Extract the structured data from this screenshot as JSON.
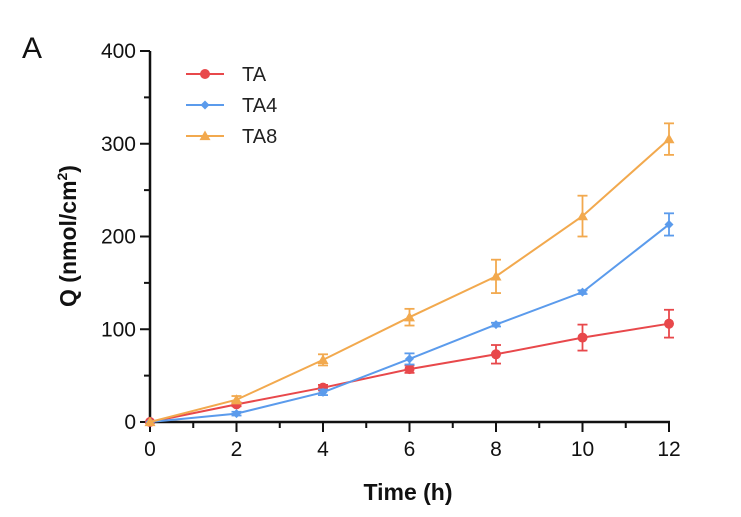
{
  "chart_data": {
    "type": "line",
    "panel_label": "A",
    "xlabel": "Time (h)",
    "ylabel": "Q (nmol/cm",
    "ylabel_sup": "2",
    "ylabel_close": ")",
    "xlim": [
      0,
      12
    ],
    "ylim": [
      0,
      400
    ],
    "x_ticks": [
      "0",
      "2",
      "4",
      "6",
      "8",
      "10",
      "12"
    ],
    "y_ticks": [
      "0",
      "100",
      "200",
      "300",
      "400"
    ],
    "x": [
      0,
      2,
      4,
      6,
      8,
      10,
      12
    ],
    "grid": false,
    "legend_position": "top-left",
    "series": [
      {
        "name": "TA",
        "color": "#e8484b",
        "marker": "circle",
        "values": [
          0,
          19,
          37,
          57,
          73,
          91,
          106
        ],
        "errors": [
          0,
          2,
          3,
          4,
          10,
          14,
          15
        ]
      },
      {
        "name": "TA4",
        "color": "#5b9bec",
        "marker": "diamond",
        "values": [
          0,
          9,
          32,
          68,
          105,
          140,
          213
        ],
        "errors": [
          0,
          2,
          3,
          6,
          2,
          2,
          12
        ]
      },
      {
        "name": "TA8",
        "color": "#f2a94e",
        "marker": "triangle",
        "values": [
          0,
          24,
          67,
          113,
          157,
          222,
          305
        ],
        "errors": [
          0,
          4,
          6,
          9,
          18,
          22,
          17
        ]
      }
    ]
  }
}
